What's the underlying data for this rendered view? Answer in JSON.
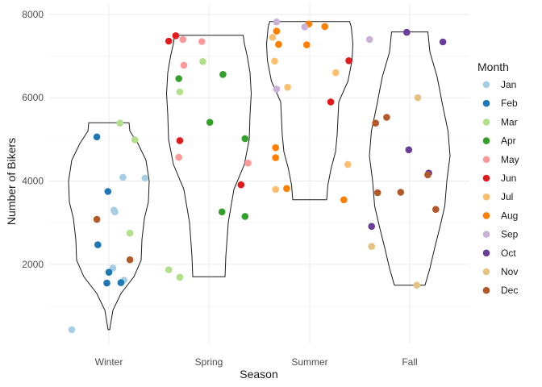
{
  "chart_data": {
    "type": "violin",
    "title": "",
    "xlabel": "Season",
    "ylabel": "Number of Bikers",
    "categories": [
      "Winter",
      "Spring",
      "Summer",
      "Fall"
    ],
    "ylim": [
      100,
      8250
    ],
    "yticks": [
      2000,
      4000,
      6000,
      8000
    ],
    "legend": {
      "title": "Month",
      "position": "right",
      "entries": [
        {
          "label": "Jan",
          "color": "#a6cee3"
        },
        {
          "label": "Feb",
          "color": "#1f78b4"
        },
        {
          "label": "Mar",
          "color": "#b2df8a"
        },
        {
          "label": "Apr",
          "color": "#33a02c"
        },
        {
          "label": "May",
          "color": "#fb9a99"
        },
        {
          "label": "Jun",
          "color": "#e31a1c"
        },
        {
          "label": "Jul",
          "color": "#fdbf6f"
        },
        {
          "label": "Aug",
          "color": "#ff7f00"
        },
        {
          "label": "Sep",
          "color": "#cab2d6"
        },
        {
          "label": "Oct",
          "color": "#6a3d9a"
        },
        {
          "label": "Nov",
          "color": "#e5c483"
        },
        {
          "label": "Dec",
          "color": "#b15928"
        }
      ]
    },
    "violins": [
      {
        "category": "Winter",
        "profile": [
          [
            431,
            0.02
          ],
          [
            900,
            0.1
          ],
          [
            1300,
            0.3
          ],
          [
            1700,
            0.62
          ],
          [
            2100,
            0.8
          ],
          [
            2600,
            0.82
          ],
          [
            3100,
            0.88
          ],
          [
            3500,
            0.98
          ],
          [
            4000,
            1.0
          ],
          [
            4500,
            0.92
          ],
          [
            4900,
            0.72
          ],
          [
            5200,
            0.52
          ],
          [
            5400,
            0.5
          ]
        ]
      },
      {
        "category": "Spring",
        "profile": [
          [
            1700,
            0.4
          ],
          [
            2200,
            0.42
          ],
          [
            3000,
            0.48
          ],
          [
            3800,
            0.62
          ],
          [
            4400,
            0.88
          ],
          [
            5000,
            1.0
          ],
          [
            5600,
            1.02
          ],
          [
            6100,
            1.05
          ],
          [
            6600,
            1.02
          ],
          [
            7000,
            0.95
          ],
          [
            7300,
            0.88
          ],
          [
            7500,
            0.85
          ]
        ]
      },
      {
        "category": "Summer",
        "profile": [
          [
            3550,
            0.42
          ],
          [
            3900,
            0.45
          ],
          [
            4300,
            0.53
          ],
          [
            4700,
            0.64
          ],
          [
            5100,
            0.68
          ],
          [
            5500,
            0.7
          ],
          [
            5900,
            0.72
          ],
          [
            6400,
            0.95
          ],
          [
            6900,
            1.05
          ],
          [
            7300,
            1.07
          ],
          [
            7700,
            1.03
          ],
          [
            7830,
            0.99
          ]
        ]
      },
      {
        "category": "Fall",
        "profile": [
          [
            1500,
            0.38
          ],
          [
            1900,
            0.5
          ],
          [
            2400,
            0.62
          ],
          [
            2900,
            0.75
          ],
          [
            3400,
            0.87
          ],
          [
            4000,
            0.92
          ],
          [
            4600,
            1.0
          ],
          [
            5200,
            0.95
          ],
          [
            5800,
            0.82
          ],
          [
            6500,
            0.68
          ],
          [
            7100,
            0.5
          ],
          [
            7580,
            0.45
          ]
        ]
      }
    ],
    "points": [
      {
        "category": "Winter",
        "jitter": -0.37,
        "value": 431,
        "month": "Jan"
      },
      {
        "category": "Winter",
        "jitter": 0.36,
        "value": 4070,
        "month": "Jan"
      },
      {
        "category": "Winter",
        "jitter": 0.14,
        "value": 4090,
        "month": "Jan"
      },
      {
        "category": "Winter",
        "jitter": 0.05,
        "value": 3300,
        "month": "Jan"
      },
      {
        "category": "Winter",
        "jitter": 0.06,
        "value": 3260,
        "month": "Jan"
      },
      {
        "category": "Winter",
        "jitter": 0.04,
        "value": 1910,
        "month": "Jan"
      },
      {
        "category": "Winter",
        "jitter": 0.15,
        "value": 1620,
        "month": "Jan"
      },
      {
        "category": "Winter",
        "jitter": -0.12,
        "value": 5060,
        "month": "Feb"
      },
      {
        "category": "Winter",
        "jitter": -0.01,
        "value": 3750,
        "month": "Feb"
      },
      {
        "category": "Winter",
        "jitter": -0.11,
        "value": 2470,
        "month": "Feb"
      },
      {
        "category": "Winter",
        "jitter": 0.0,
        "value": 1810,
        "month": "Feb"
      },
      {
        "category": "Winter",
        "jitter": -0.02,
        "value": 1550,
        "month": "Feb"
      },
      {
        "category": "Winter",
        "jitter": 0.12,
        "value": 1560,
        "month": "Feb"
      },
      {
        "category": "Winter",
        "jitter": 0.11,
        "value": 5390,
        "month": "Mar"
      },
      {
        "category": "Winter",
        "jitter": 0.26,
        "value": 4990,
        "month": "Mar"
      },
      {
        "category": "Winter",
        "jitter": 0.21,
        "value": 2750,
        "month": "Mar"
      },
      {
        "category": "Winter",
        "jitter": -0.12,
        "value": 3080,
        "month": "Dec"
      },
      {
        "category": "Winter",
        "jitter": 0.21,
        "value": 2110,
        "month": "Dec"
      },
      {
        "category": "Spring",
        "jitter": -0.4,
        "value": 1870,
        "month": "Mar"
      },
      {
        "category": "Spring",
        "jitter": -0.29,
        "value": 1690,
        "month": "Mar"
      },
      {
        "category": "Spring",
        "jitter": -0.29,
        "value": 6140,
        "month": "Mar"
      },
      {
        "category": "Spring",
        "jitter": -0.06,
        "value": 6870,
        "month": "Mar"
      },
      {
        "category": "Spring",
        "jitter": 0.01,
        "value": 5410,
        "month": "Apr"
      },
      {
        "category": "Spring",
        "jitter": 0.14,
        "value": 6560,
        "month": "Apr"
      },
      {
        "category": "Spring",
        "jitter": 0.13,
        "value": 3260,
        "month": "Apr"
      },
      {
        "category": "Spring",
        "jitter": 0.36,
        "value": 3150,
        "month": "Apr"
      },
      {
        "category": "Spring",
        "jitter": 0.36,
        "value": 5020,
        "month": "Apr"
      },
      {
        "category": "Spring",
        "jitter": -0.3,
        "value": 6460,
        "month": "Apr"
      },
      {
        "category": "Spring",
        "jitter": -0.26,
        "value": 7400,
        "month": "May"
      },
      {
        "category": "Spring",
        "jitter": -0.25,
        "value": 6780,
        "month": "May"
      },
      {
        "category": "Spring",
        "jitter": -0.3,
        "value": 4570,
        "month": "May"
      },
      {
        "category": "Spring",
        "jitter": -0.07,
        "value": 7350,
        "month": "May"
      },
      {
        "category": "Spring",
        "jitter": 0.39,
        "value": 4430,
        "month": "May"
      },
      {
        "category": "Spring",
        "jitter": -0.4,
        "value": 7360,
        "month": "Jun"
      },
      {
        "category": "Spring",
        "jitter": -0.33,
        "value": 7490,
        "month": "Jun"
      },
      {
        "category": "Spring",
        "jitter": -0.29,
        "value": 4970,
        "month": "Jun"
      },
      {
        "category": "Spring",
        "jitter": 0.32,
        "value": 3910,
        "month": "Jun"
      },
      {
        "category": "Summer",
        "jitter": -0.35,
        "value": 6880,
        "month": "Jul"
      },
      {
        "category": "Summer",
        "jitter": -0.34,
        "value": 3800,
        "month": "Jul"
      },
      {
        "category": "Summer",
        "jitter": -0.22,
        "value": 6250,
        "month": "Jul"
      },
      {
        "category": "Summer",
        "jitter": 0.26,
        "value": 6600,
        "month": "Jul"
      },
      {
        "category": "Summer",
        "jitter": 0.38,
        "value": 4400,
        "month": "Jul"
      },
      {
        "category": "Summer",
        "jitter": -0.37,
        "value": 7450,
        "month": "Jul"
      },
      {
        "category": "Summer",
        "jitter": -0.33,
        "value": 7600,
        "month": "Aug"
      },
      {
        "category": "Summer",
        "jitter": -0.31,
        "value": 7280,
        "month": "Aug"
      },
      {
        "category": "Summer",
        "jitter": -0.34,
        "value": 4800,
        "month": "Aug"
      },
      {
        "category": "Summer",
        "jitter": -0.34,
        "value": 4560,
        "month": "Aug"
      },
      {
        "category": "Summer",
        "jitter": -0.23,
        "value": 3820,
        "month": "Aug"
      },
      {
        "category": "Summer",
        "jitter": -0.03,
        "value": 7270,
        "month": "Aug"
      },
      {
        "category": "Summer",
        "jitter": -0.01,
        "value": 7770,
        "month": "Aug"
      },
      {
        "category": "Summer",
        "jitter": 0.15,
        "value": 7710,
        "month": "Aug"
      },
      {
        "category": "Summer",
        "jitter": 0.34,
        "value": 3550,
        "month": "Aug"
      },
      {
        "category": "Summer",
        "jitter": -0.33,
        "value": 7820,
        "month": "Sep"
      },
      {
        "category": "Summer",
        "jitter": -0.33,
        "value": 6210,
        "month": "Sep"
      },
      {
        "category": "Summer",
        "jitter": -0.05,
        "value": 7700,
        "month": "Sep"
      },
      {
        "category": "Summer",
        "jitter": 0.21,
        "value": 5900,
        "month": "Jun"
      },
      {
        "category": "Summer",
        "jitter": 0.39,
        "value": 6890,
        "month": "Jun"
      },
      {
        "category": "Fall",
        "jitter": -0.4,
        "value": 7400,
        "month": "Sep"
      },
      {
        "category": "Fall",
        "jitter": -0.38,
        "value": 2910,
        "month": "Oct"
      },
      {
        "category": "Fall",
        "jitter": -0.03,
        "value": 7570,
        "month": "Oct"
      },
      {
        "category": "Fall",
        "jitter": -0.01,
        "value": 4750,
        "month": "Oct"
      },
      {
        "category": "Fall",
        "jitter": 0.19,
        "value": 4190,
        "month": "Oct"
      },
      {
        "category": "Fall",
        "jitter": 0.33,
        "value": 7340,
        "month": "Oct"
      },
      {
        "category": "Fall",
        "jitter": -0.38,
        "value": 2430,
        "month": "Nov"
      },
      {
        "category": "Fall",
        "jitter": 0.07,
        "value": 1500,
        "month": "Nov"
      },
      {
        "category": "Fall",
        "jitter": 0.08,
        "value": 6000,
        "month": "Nov"
      },
      {
        "category": "Fall",
        "jitter": -0.34,
        "value": 5390,
        "month": "Dec"
      },
      {
        "category": "Fall",
        "jitter": -0.32,
        "value": 3720,
        "month": "Dec"
      },
      {
        "category": "Fall",
        "jitter": -0.23,
        "value": 5530,
        "month": "Dec"
      },
      {
        "category": "Fall",
        "jitter": -0.09,
        "value": 3730,
        "month": "Dec"
      },
      {
        "category": "Fall",
        "jitter": 0.18,
        "value": 4150,
        "month": "Dec"
      },
      {
        "category": "Fall",
        "jitter": 0.26,
        "value": 3320,
        "month": "Dec"
      }
    ]
  }
}
